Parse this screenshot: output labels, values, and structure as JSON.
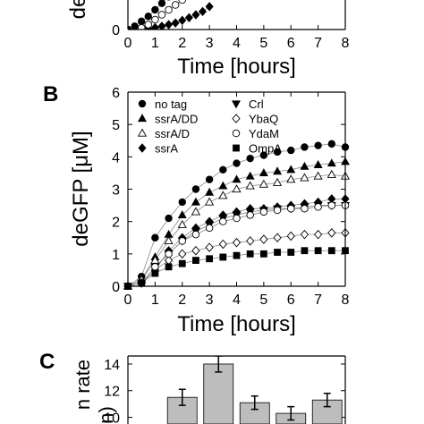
{
  "chart_data": [
    {
      "type": "line",
      "ylabel": "de",
      "xlabel": "Time [hours]",
      "xlim": [
        0,
        8
      ],
      "xticks": [
        0,
        1,
        2,
        3,
        4,
        5,
        6,
        7,
        8
      ],
      "ylim": [
        0,
        0.9
      ],
      "yticks": [
        0
      ],
      "series": [
        {
          "marker": "circle",
          "color": "#000000",
          "x": [
            0,
            0.25,
            0.5,
            0.75,
            1,
            1.25,
            1.5
          ],
          "values": [
            0,
            0.1,
            0.25,
            0.4,
            0.6,
            0.8,
            1.0
          ]
        },
        {
          "marker": "diamond",
          "color": "#000000",
          "x": [
            0.5,
            0.75,
            1,
            1.25,
            1.5,
            1.75,
            2,
            2.25,
            2.5,
            2.75,
            3
          ],
          "values": [
            0,
            0.03,
            0.06,
            0.1,
            0.15,
            0.2,
            0.28,
            0.36,
            0.45,
            0.55,
            0.7
          ]
        },
        {
          "marker": "circle-open",
          "color": "#000000",
          "x": [
            0.5,
            0.75,
            1,
            1.25,
            1.5,
            1.75,
            2
          ],
          "values": [
            0.05,
            0.15,
            0.3,
            0.45,
            0.6,
            0.75,
            0.9
          ]
        }
      ]
    },
    {
      "type": "line",
      "panel": "B",
      "ylabel": "deGFP [μM]",
      "xlabel": "Time [hours]",
      "xlim": [
        0,
        8
      ],
      "xticks": [
        0,
        1,
        2,
        3,
        4,
        5,
        6,
        7,
        8
      ],
      "ylim": [
        0,
        6
      ],
      "yticks": [
        0,
        1,
        2,
        3,
        4,
        5,
        6
      ],
      "legend": "upper left",
      "x": [
        0,
        0.5,
        1,
        1.5,
        2,
        2.5,
        3,
        3.5,
        4,
        4.5,
        5,
        5.5,
        6,
        6.5,
        7,
        7.5,
        8
      ],
      "series": [
        {
          "name": "no tag",
          "marker": "circle",
          "color": "#000000",
          "values": [
            0,
            0.3,
            1.5,
            2.1,
            2.6,
            3.0,
            3.3,
            3.6,
            3.8,
            3.95,
            4.05,
            4.15,
            4.2,
            4.3,
            4.35,
            4.4,
            4.3
          ]
        },
        {
          "name": "ssrA/DD",
          "marker": "triangle",
          "color": "#000000",
          "values": [
            0,
            0.2,
            0.9,
            1.6,
            2.2,
            2.6,
            2.9,
            3.1,
            3.3,
            3.4,
            3.5,
            3.55,
            3.6,
            3.7,
            3.75,
            3.8,
            3.85
          ]
        },
        {
          "name": "ssrA/D",
          "marker": "triangle-open",
          "color": "#000000",
          "values": [
            0,
            0.2,
            0.8,
            1.4,
            1.9,
            2.3,
            2.6,
            2.8,
            3.0,
            3.1,
            3.15,
            3.2,
            3.3,
            3.35,
            3.4,
            3.45,
            3.4
          ]
        },
        {
          "name": "ssrA",
          "marker": "diamond",
          "color": "#000000",
          "values": [
            0,
            0.1,
            0.5,
            1.1,
            1.5,
            1.8,
            2.0,
            2.2,
            2.3,
            2.4,
            2.4,
            2.45,
            2.5,
            2.55,
            2.6,
            2.7,
            2.7
          ]
        },
        {
          "name": "Crl",
          "marker": "triangle-down",
          "color": "#000000",
          "values": [
            0,
            0.1,
            0.6,
            1.0,
            1.4,
            1.7,
            1.9,
            2.1,
            2.2,
            2.3,
            2.35,
            2.4,
            2.4,
            2.45,
            2.5,
            2.5,
            2.5
          ]
        },
        {
          "name": "YbaQ",
          "marker": "diamond-open",
          "color": "#000000",
          "values": [
            0,
            0.1,
            0.5,
            0.8,
            1.0,
            1.1,
            1.2,
            1.3,
            1.35,
            1.4,
            1.45,
            1.5,
            1.55,
            1.6,
            1.6,
            1.65,
            1.65
          ]
        },
        {
          "name": "YdaM",
          "marker": "circle-open",
          "color": "#000000",
          "values": [
            0,
            0.1,
            0.6,
            1.0,
            1.4,
            1.6,
            1.8,
            2.0,
            2.1,
            2.2,
            2.3,
            2.35,
            2.4,
            2.4,
            2.45,
            2.5,
            2.5
          ]
        },
        {
          "name": "OmpA",
          "marker": "square",
          "color": "#000000",
          "values": [
            0,
            0.1,
            0.4,
            0.6,
            0.7,
            0.8,
            0.85,
            0.9,
            0.95,
            1.0,
            1.0,
            1.05,
            1.05,
            1.1,
            1.1,
            1.1,
            1.1
          ]
        }
      ]
    },
    {
      "type": "bar",
      "panel": "C",
      "ylabel": [
        "n rate",
        "n)"
      ],
      "categories": [
        null,
        null,
        null,
        null,
        null
      ],
      "values": [
        11.5,
        14.0,
        11.1,
        10.3,
        11.3
      ],
      "errors": [
        0.6,
        0.6,
        0.5,
        0.5,
        0.5
      ],
      "color": "#bdbdbd",
      "ylim": [
        9.5,
        14.6
      ],
      "yticks": [
        10,
        12,
        14
      ]
    }
  ]
}
